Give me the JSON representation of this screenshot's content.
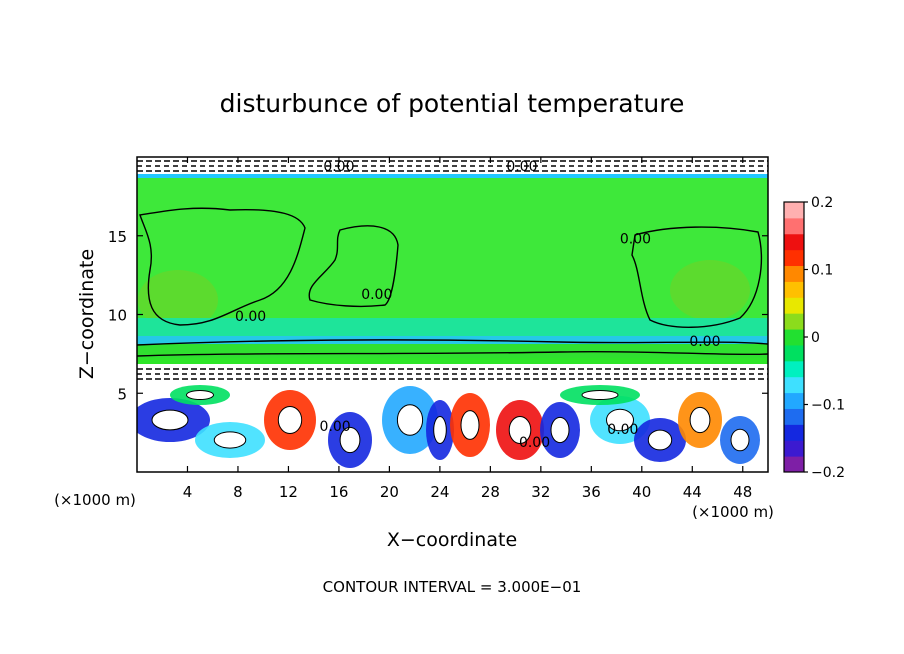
{
  "chart_data": {
    "type": "heatmap",
    "title": "disturbunce of potential temperature",
    "xlabel": "X−coordinate",
    "ylabel": "Z−coordinate",
    "x_unit": "(×1000 m)",
    "z_unit": "(×1000 m)",
    "footer": "CONTOUR INTERVAL = 3.000E−01",
    "xlim": [
      0,
      50
    ],
    "zlim": [
      0,
      20
    ],
    "x_ticks": [
      4,
      8,
      12,
      16,
      20,
      24,
      28,
      32,
      36,
      40,
      44,
      48
    ],
    "z_ticks": [
      5,
      10,
      15
    ],
    "colorbar": {
      "range": [
        -0.2,
        0.2
      ],
      "tick_values": [
        0.2,
        0.1,
        0,
        -0.1,
        -0.2
      ],
      "tick_labels": [
        "0.2",
        "0.1",
        "0",
        "−0.1",
        "−0.2"
      ],
      "colors": [
        "#7e1fa6",
        "#3c1ad0",
        "#1428e0",
        "#1e6cf0",
        "#22a8ff",
        "#3ee0ff",
        "#00f0c0",
        "#00e060",
        "#22e030",
        "#8cdc1c",
        "#e8e800",
        "#ffc000",
        "#ff8800",
        "#ff3000",
        "#ee1010",
        "#ff7070",
        "#ffb0b0"
      ]
    },
    "contour_labels": [
      {
        "x": 9.0,
        "z": 9.6,
        "text": "0.00"
      },
      {
        "x": 16.0,
        "z": 19.1,
        "text": "0.00"
      },
      {
        "x": 30.5,
        "z": 19.1,
        "text": "0.00"
      },
      {
        "x": 19.0,
        "z": 11.0,
        "text": "0.00"
      },
      {
        "x": 39.5,
        "z": 14.5,
        "text": "0.00"
      },
      {
        "x": 45.0,
        "z": 8.0,
        "text": "0.00"
      },
      {
        "x": 15.7,
        "z": 2.6,
        "text": "0.00"
      },
      {
        "x": 31.5,
        "z": 1.6,
        "text": "0.00"
      },
      {
        "x": 38.5,
        "z": 2.4,
        "text": "0.00"
      }
    ]
  }
}
